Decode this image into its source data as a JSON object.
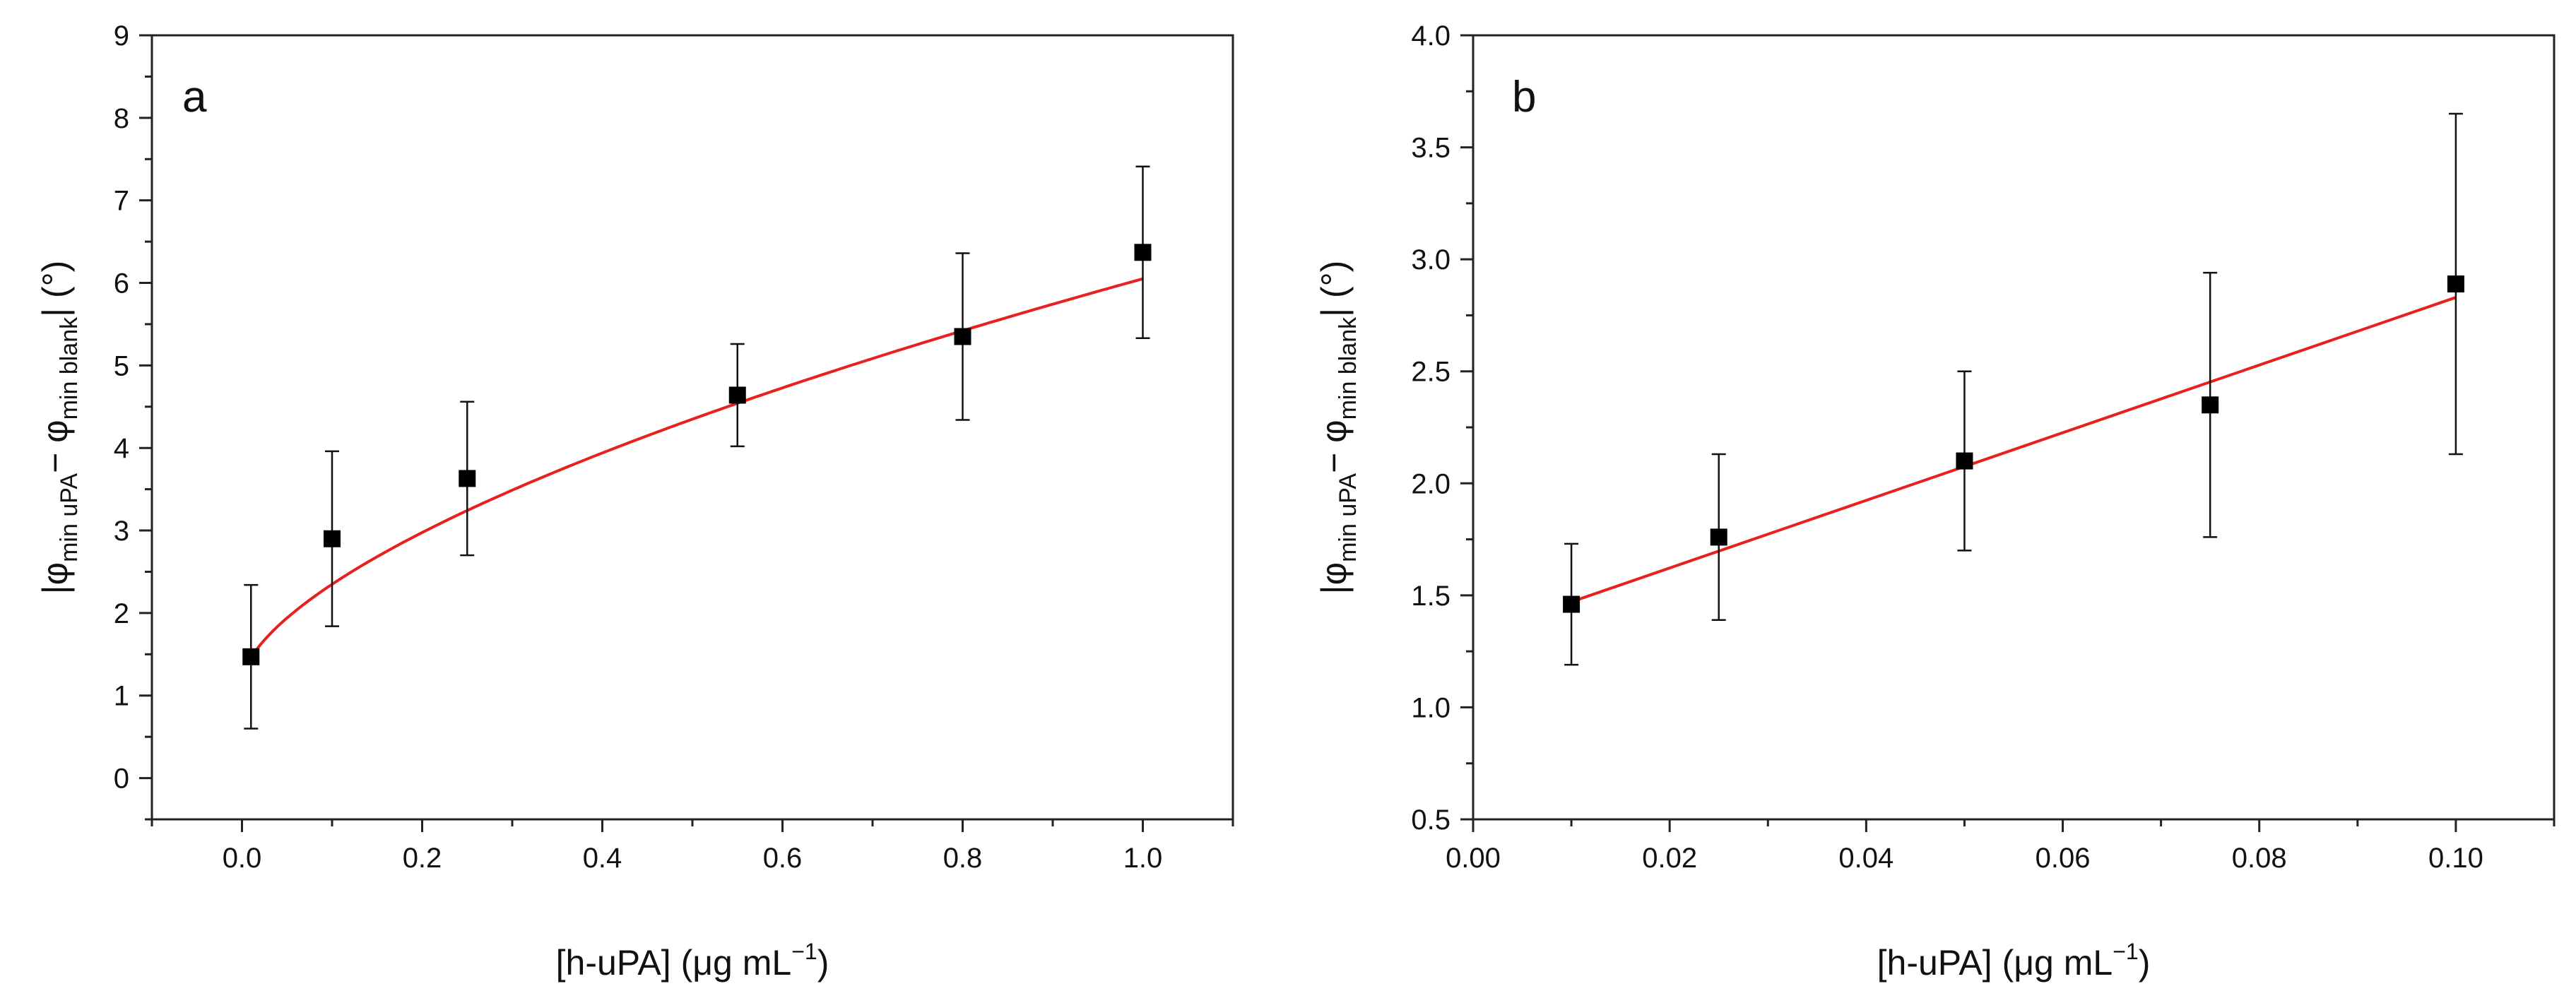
{
  "chart_data": [
    {
      "type": "scatter",
      "panel_label": "a",
      "xlabel": {
        "pre": "[h-uPA] (",
        "mu": "μ",
        "mid": "g mL",
        "sup": "−1",
        "post": ")"
      },
      "ylabel": {
        "bar1": "|",
        "phi1": "φ",
        "sub1": "min uPA",
        "minus": "− ",
        "phi2": "φ",
        "sub2": "min blank",
        "bar2": "|",
        "unit": " (°)"
      },
      "xlim": [
        -0.1,
        1.1
      ],
      "ylim": [
        -0.5,
        9
      ],
      "xticks": [
        "0.0",
        "0.2",
        "0.4",
        "0.6",
        "0.8",
        "1.0"
      ],
      "xtick_values": [
        0,
        0.2,
        0.4,
        0.6,
        0.8,
        1.0
      ],
      "yticks": [
        "0",
        "1",
        "2",
        "3",
        "4",
        "5",
        "6",
        "7",
        "8",
        "9"
      ],
      "ytick_values": [
        0,
        1,
        2,
        3,
        4,
        5,
        6,
        7,
        8,
        9
      ],
      "points": [
        {
          "x": 0.01,
          "y": 1.47,
          "err": 0.87
        },
        {
          "x": 0.1,
          "y": 2.9,
          "err": 1.06
        },
        {
          "x": 0.25,
          "y": 3.63,
          "err": 0.93
        },
        {
          "x": 0.55,
          "y": 4.64,
          "err": 0.62
        },
        {
          "x": 0.8,
          "y": 5.35,
          "err": 1.01
        },
        {
          "x": 1.0,
          "y": 6.37,
          "err": 1.04
        }
      ],
      "fit": {
        "type": "power",
        "a": 1.18,
        "b": 4.87,
        "c": 0.62,
        "color": "#e8201e"
      },
      "marker_color": "#000000"
    },
    {
      "type": "scatter",
      "panel_label": "b",
      "xlabel": {
        "pre": "[h-uPA] (",
        "mu": "μ",
        "mid": "g mL",
        "sup": "−1",
        "post": ")"
      },
      "ylabel": {
        "bar1": "|",
        "phi1": "φ",
        "sub1": "min uPA",
        "minus": "− ",
        "phi2": "φ",
        "sub2": "min blank",
        "bar2": "|",
        "unit": " (°)"
      },
      "xlim": [
        0,
        0.11
      ],
      "ylim": [
        0.5,
        4.0
      ],
      "xticks": [
        "0.00",
        "0.02",
        "0.04",
        "0.06",
        "0.08",
        "0.10"
      ],
      "xtick_values": [
        0,
        0.02,
        0.04,
        0.06,
        0.08,
        0.1
      ],
      "yticks": [
        "0.5",
        "1.0",
        "1.5",
        "2.0",
        "2.5",
        "3.0",
        "3.5",
        "4.0"
      ],
      "ytick_values": [
        0.5,
        1.0,
        1.5,
        2.0,
        2.5,
        3.0,
        3.5,
        4.0
      ],
      "points": [
        {
          "x": 0.01,
          "y": 1.46,
          "err": 0.27
        },
        {
          "x": 0.025,
          "y": 1.76,
          "err": 0.37
        },
        {
          "x": 0.05,
          "y": 2.1,
          "err": 0.4
        },
        {
          "x": 0.075,
          "y": 2.35,
          "err": 0.59
        },
        {
          "x": 0.1,
          "y": 2.89,
          "err": 0.76
        }
      ],
      "fit": {
        "type": "linear",
        "slope": 15.1,
        "intercept": 1.32,
        "x0": 0.01,
        "x1": 0.1,
        "color": "#e8201e"
      },
      "marker_color": "#000000"
    }
  ]
}
